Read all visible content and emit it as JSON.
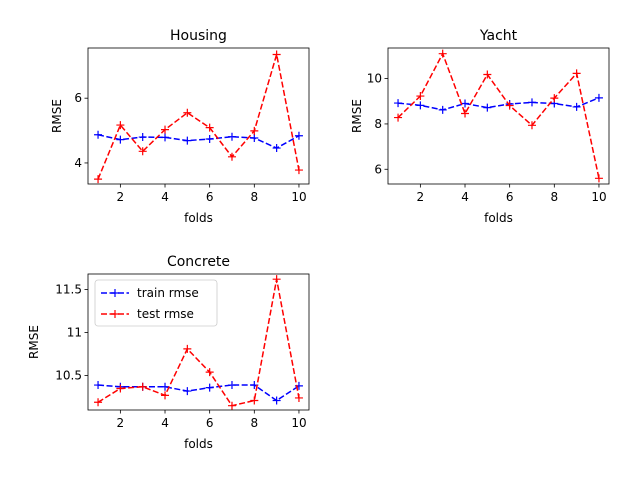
{
  "colors": {
    "train": "#0000ff",
    "test": "#ff0000"
  },
  "legend": {
    "train_label": "train rmse",
    "test_label": "test rmse",
    "placement": "upper-left"
  },
  "chart_data": [
    {
      "type": "line",
      "title": "Housing",
      "xlabel": "folds",
      "ylabel": "RMSE",
      "x": [
        1,
        2,
        3,
        4,
        5,
        6,
        7,
        8,
        9,
        10
      ],
      "xlim": [
        0.55,
        10.45
      ],
      "ylim": [
        3.35,
        7.55
      ],
      "xticks": [
        2,
        4,
        6,
        8,
        10
      ],
      "yticks": [
        4,
        6
      ],
      "legend": false,
      "grid": false,
      "series": [
        {
          "name": "train rmse",
          "color": "#0000ff",
          "marker": "+",
          "linestyle": "dashed",
          "values": [
            4.87,
            4.72,
            4.8,
            4.79,
            4.69,
            4.74,
            4.81,
            4.77,
            4.46,
            4.84
          ]
        },
        {
          "name": "test rmse",
          "color": "#ff0000",
          "marker": "+",
          "linestyle": "dashed",
          "values": [
            3.5,
            5.17,
            4.36,
            5.03,
            5.55,
            5.09,
            4.19,
            4.99,
            7.35,
            3.78
          ]
        }
      ]
    },
    {
      "type": "line",
      "title": "Yacht",
      "xlabel": "folds",
      "ylabel": "RMSE",
      "x": [
        1,
        2,
        3,
        4,
        5,
        6,
        7,
        8,
        9,
        10
      ],
      "xlim": [
        0.55,
        10.45
      ],
      "ylim": [
        5.35,
        11.35
      ],
      "xticks": [
        2,
        4,
        6,
        8,
        10
      ],
      "yticks": [
        6,
        8,
        10
      ],
      "legend": false,
      "grid": false,
      "series": [
        {
          "name": "train rmse",
          "color": "#0000ff",
          "marker": "+",
          "linestyle": "dashed",
          "values": [
            8.92,
            8.82,
            8.62,
            8.9,
            8.72,
            8.88,
            8.95,
            8.9,
            8.75,
            9.15
          ]
        },
        {
          "name": "test rmse",
          "color": "#ff0000",
          "marker": "+",
          "linestyle": "dashed",
          "values": [
            8.28,
            9.23,
            11.1,
            8.46,
            10.18,
            8.81,
            7.94,
            9.14,
            10.23,
            5.6
          ]
        }
      ]
    },
    {
      "type": "line",
      "title": "Concrete",
      "xlabel": "folds",
      "ylabel": "RMSE",
      "x": [
        1,
        2,
        3,
        4,
        5,
        6,
        7,
        8,
        9,
        10
      ],
      "xlim": [
        0.55,
        10.45
      ],
      "ylim": [
        10.1,
        11.68
      ],
      "xticks": [
        2,
        4,
        6,
        8,
        10
      ],
      "yticks": [
        10.5,
        11.0,
        11.5
      ],
      "legend": true,
      "legend_placement": "upper-left",
      "grid": false,
      "series": [
        {
          "name": "train rmse",
          "color": "#0000ff",
          "marker": "+",
          "linestyle": "dashed",
          "values": [
            10.39,
            10.37,
            10.37,
            10.37,
            10.32,
            10.36,
            10.39,
            10.39,
            10.21,
            10.38
          ]
        },
        {
          "name": "test rmse",
          "color": "#ff0000",
          "marker": "+",
          "linestyle": "dashed",
          "values": [
            10.19,
            10.35,
            10.37,
            10.27,
            10.81,
            10.54,
            10.15,
            10.21,
            11.62,
            10.24
          ]
        }
      ]
    }
  ]
}
